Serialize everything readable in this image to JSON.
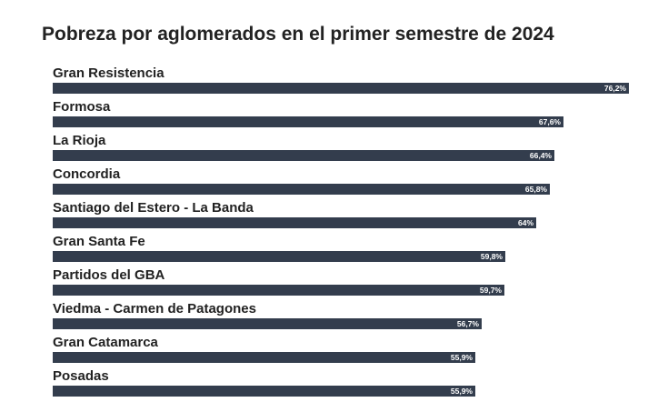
{
  "chart_data": {
    "type": "bar",
    "orientation": "horizontal",
    "title": "Pobreza por aglomerados en el primer semestre de 2024",
    "categories": [
      "Gran Resistencia",
      "Formosa",
      "La Rioja",
      "Concordia",
      "Santiago del Estero - La Banda",
      "Gran Santa Fe",
      "Partidos del GBA",
      "Viedma - Carmen de Patagones",
      "Gran Catamarca",
      "Posadas"
    ],
    "values": [
      76.2,
      67.6,
      66.4,
      65.8,
      64,
      59.8,
      59.7,
      56.7,
      55.9,
      55.9
    ],
    "value_labels": [
      "76,2%",
      "67,6%",
      "66,4%",
      "65,8%",
      "64%",
      "59,8%",
      "59,7%",
      "56,7%",
      "55,9%",
      "55,9%"
    ],
    "xlim": [
      0,
      76.2
    ],
    "bar_color": "#333d4d",
    "grid": false,
    "legend": "none"
  }
}
